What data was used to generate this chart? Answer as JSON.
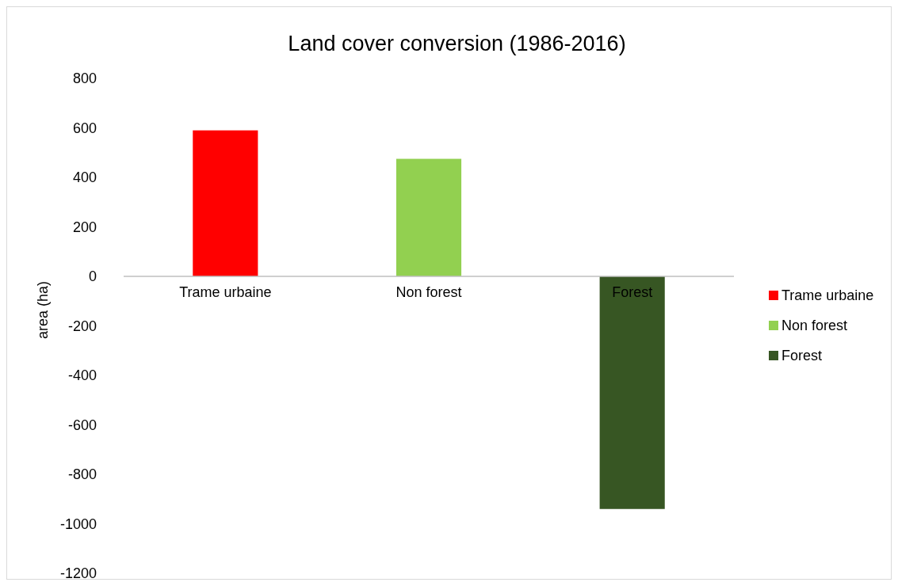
{
  "chart_data": {
    "type": "bar",
    "title": "Land cover conversion (1986-2016)",
    "ylabel": "area (ha)",
    "categories": [
      "Trame urbaine",
      "Non forest",
      "Forest"
    ],
    "series": [
      {
        "name": "Trame urbaine",
        "color": "#ff0000",
        "values": [
          590,
          null,
          null
        ]
      },
      {
        "name": "Non forest",
        "color": "#92d050",
        "values": [
          null,
          475,
          null
        ]
      },
      {
        "name": "Forest",
        "color": "#375623",
        "values": [
          null,
          null,
          -940
        ]
      }
    ],
    "ylim": [
      -1200,
      800
    ],
    "yticks": [
      -1200,
      -1000,
      -800,
      -600,
      -400,
      -200,
      0,
      200,
      400,
      600,
      800
    ],
    "grid": false,
    "legend": "right"
  }
}
